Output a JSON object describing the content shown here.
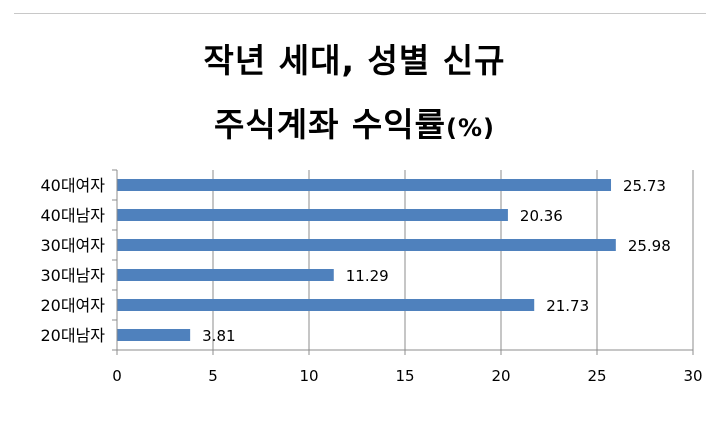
{
  "chart_data": {
    "type": "bar",
    "orientation": "horizontal",
    "title_line1": "작년 세대, 성별 신규",
    "title_line2": "주식계좌 수익률",
    "title_unit": "(%)",
    "categories": [
      "40대여자",
      "40대남자",
      "30대여자",
      "30대남자",
      "20대여자",
      "20대남자"
    ],
    "values": [
      25.73,
      20.36,
      25.98,
      11.29,
      21.73,
      3.81
    ],
    "value_labels": [
      "25.73",
      "20.36",
      "25.98",
      "11.29",
      "21.73",
      "3.81"
    ],
    "xlim": [
      0,
      30
    ],
    "x_ticks": [
      "0",
      "5",
      "10",
      "15",
      "20",
      "25",
      "30"
    ],
    "x_tick_values": [
      0,
      5,
      10,
      15,
      20,
      25,
      30
    ],
    "gridlines": "vertical",
    "legend": "none",
    "bar_color": "#4F81BD"
  }
}
